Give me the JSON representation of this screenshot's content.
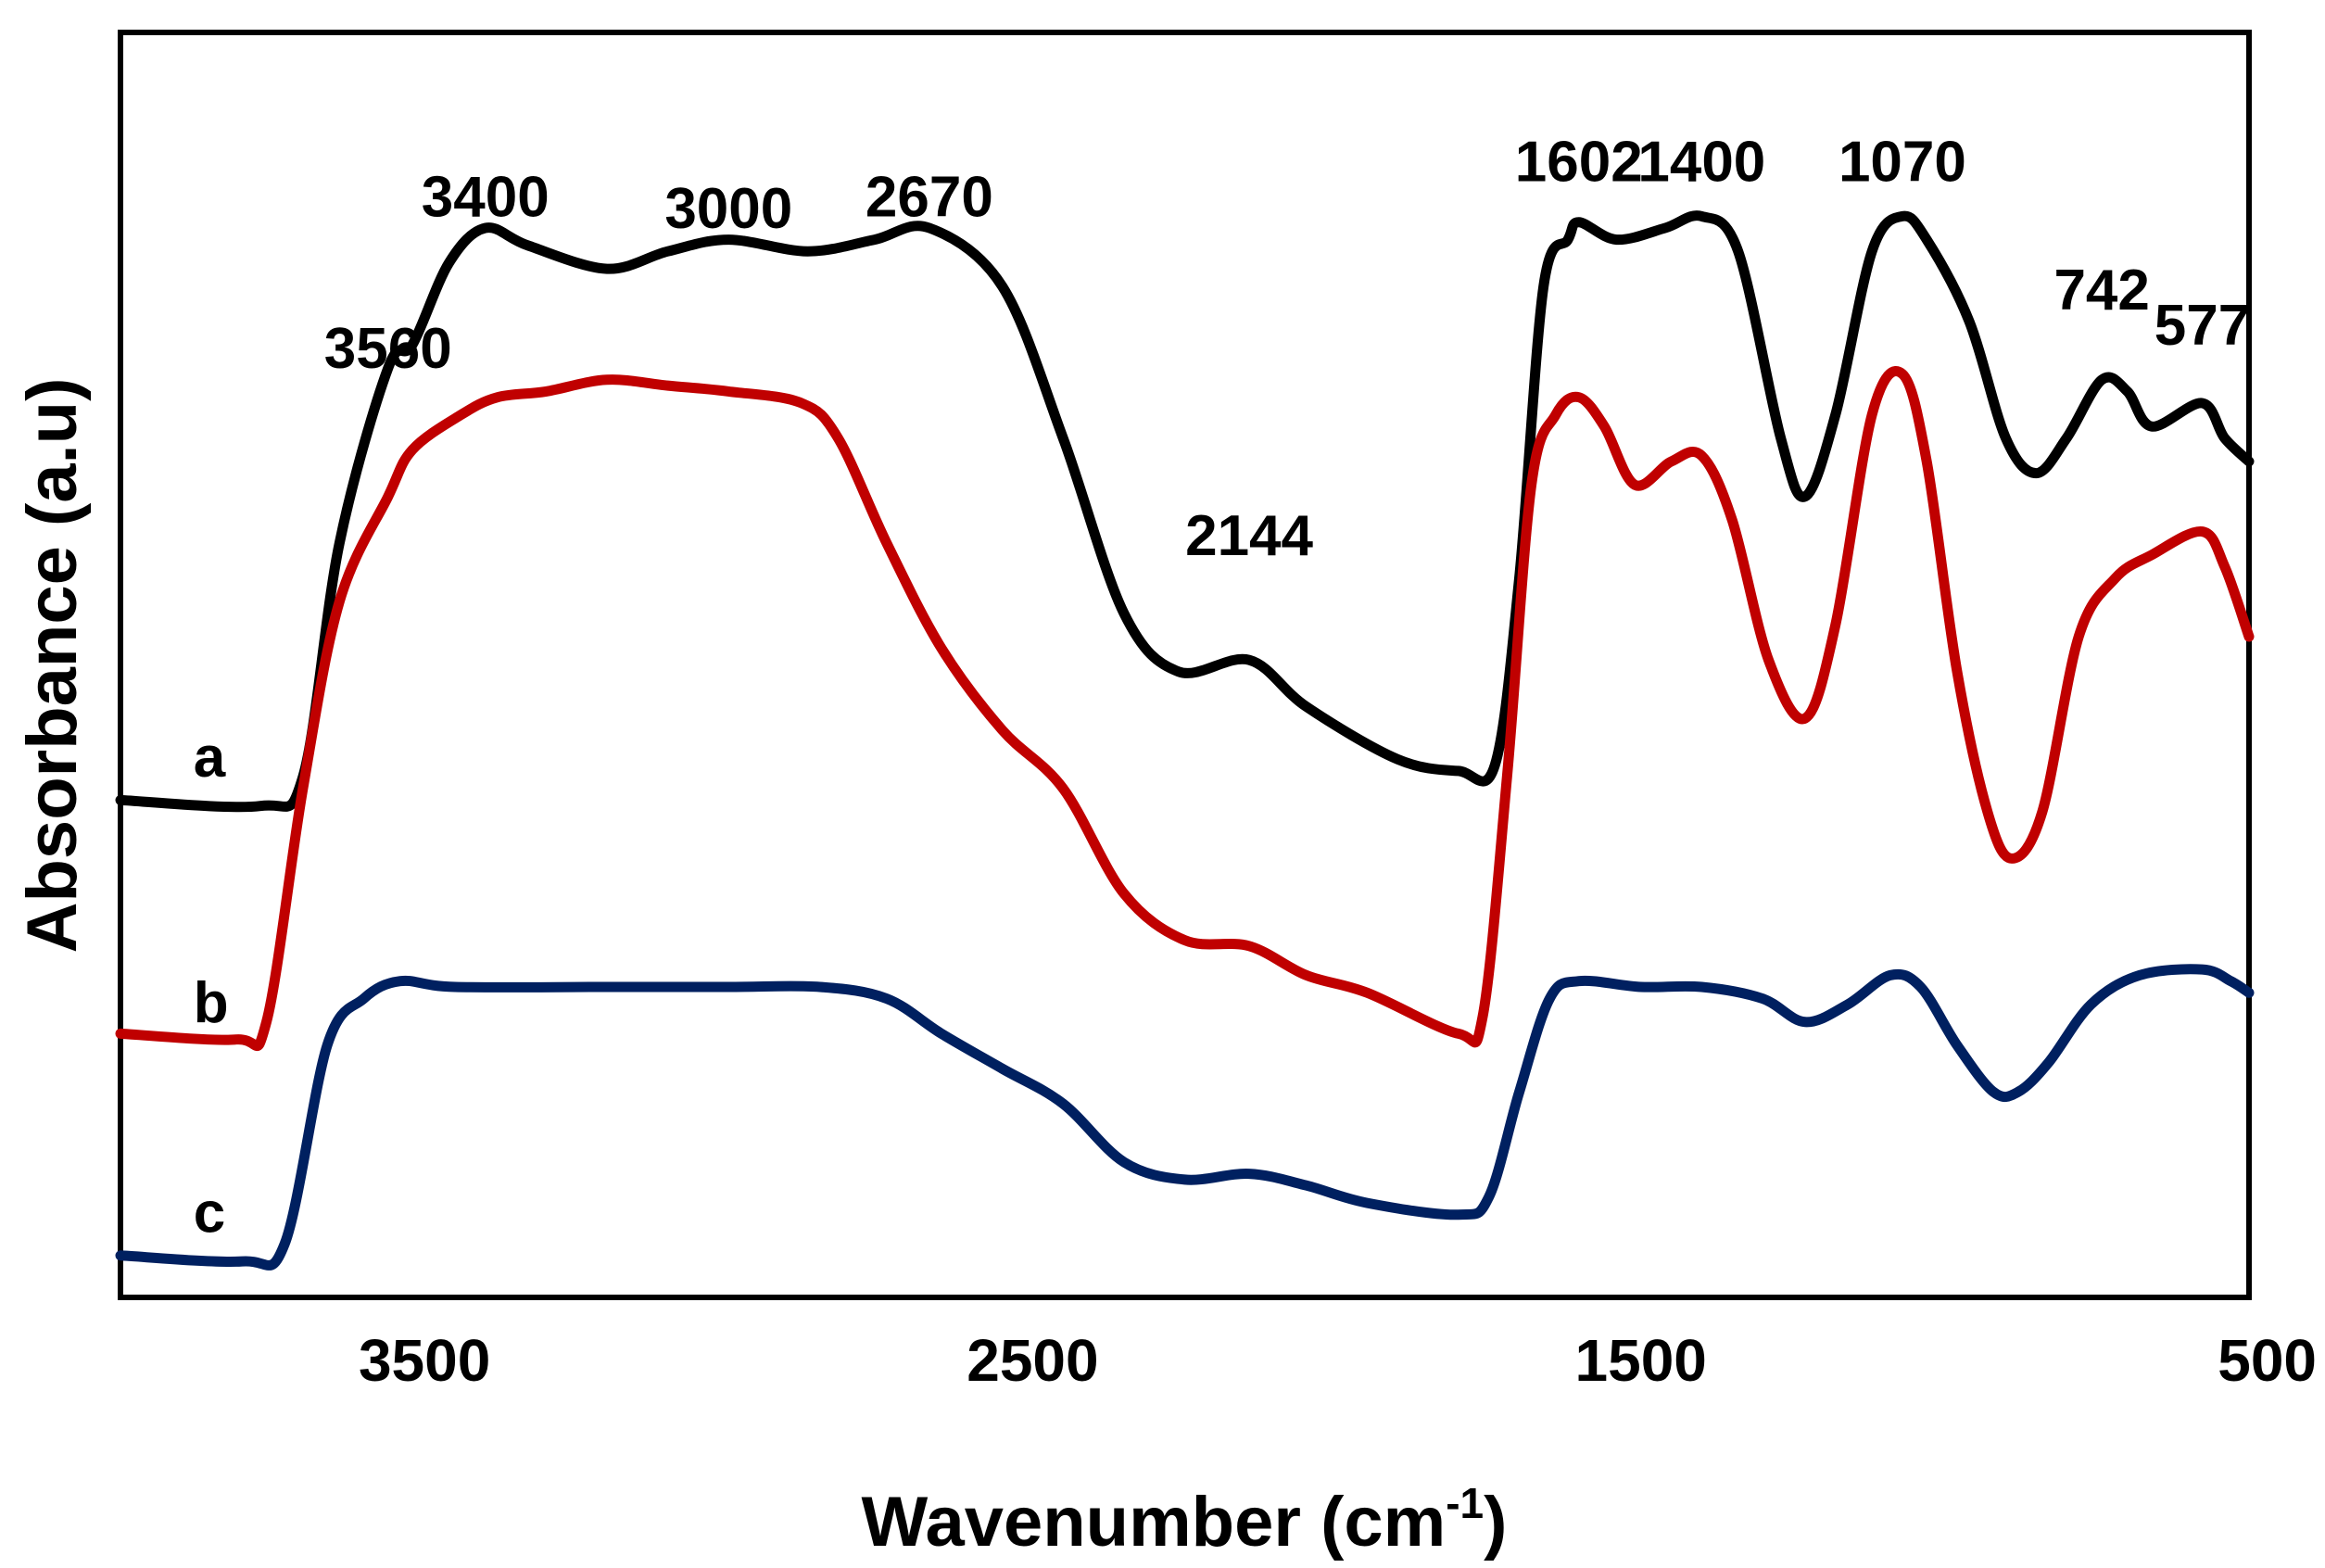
{
  "chart_data": {
    "type": "line",
    "title": "",
    "xlabel": "Wavenumber (cm",
    "xlabel_sup": "-1",
    "xlabel_close": ")",
    "ylabel": "Absorbance (a.u)",
    "xlim": [
      4000,
      500
    ],
    "x_reversed": true,
    "ylim": [
      0,
      100
    ],
    "grid": false,
    "x_ticks": [
      {
        "value": 3500,
        "label": "3500"
      },
      {
        "value": 2500,
        "label": "2500"
      },
      {
        "value": 1500,
        "label": "1500"
      },
      {
        "value": 500,
        "label": "500"
      }
    ],
    "peak_labels": [
      {
        "text": "3560",
        "x": 3560,
        "y": 78
      },
      {
        "text": "3400",
        "x": 3400,
        "y": 91
      },
      {
        "text": "3000",
        "x": 3000,
        "y": 90
      },
      {
        "text": "2670",
        "x": 2670,
        "y": 91
      },
      {
        "text": "2144",
        "x": 2144,
        "y": 62
      },
      {
        "text": "1602",
        "x": 1602,
        "y": 94
      },
      {
        "text": "1400",
        "x": 1400,
        "y": 94
      },
      {
        "text": "1070",
        "x": 1070,
        "y": 94
      },
      {
        "text": "742",
        "x": 742,
        "y": 83
      },
      {
        "text": "577",
        "x": 577,
        "y": 80
      }
    ],
    "series": [
      {
        "name": "a",
        "color": "#000000",
        "label_x": 3880,
        "label_y": 43,
        "points": [
          [
            4000,
            41
          ],
          [
            3770,
            40.5
          ],
          [
            3700,
            43
          ],
          [
            3640,
            63
          ],
          [
            3560,
            78
          ],
          [
            3520,
            80
          ],
          [
            3460,
            87
          ],
          [
            3400,
            90
          ],
          [
            3330,
            88.5
          ],
          [
            3200,
            86.5
          ],
          [
            3100,
            88
          ],
          [
            3000,
            89
          ],
          [
            2870,
            88
          ],
          [
            2760,
            89
          ],
          [
            2670,
            90
          ],
          [
            2550,
            85
          ],
          [
            2450,
            72
          ],
          [
            2350,
            57
          ],
          [
            2260,
            52
          ],
          [
            2144,
            53
          ],
          [
            2050,
            49
          ],
          [
            1900,
            44.5
          ],
          [
            1800,
            43.5
          ],
          [
            1740,
            44
          ],
          [
            1700,
            60
          ],
          [
            1660,
            85
          ],
          [
            1620,
            89
          ],
          [
            1602,
            90.5
          ],
          [
            1540,
            89
          ],
          [
            1460,
            90
          ],
          [
            1400,
            91
          ],
          [
            1340,
            88
          ],
          [
            1270,
            72
          ],
          [
            1230,
            67
          ],
          [
            1180,
            74
          ],
          [
            1120,
            88
          ],
          [
            1070,
            91
          ],
          [
            1030,
            89
          ],
          [
            960,
            82
          ],
          [
            900,
            72
          ],
          [
            850,
            69
          ],
          [
            800,
            72
          ],
          [
            742,
            77
          ],
          [
            700,
            76
          ],
          [
            660,
            73
          ],
          [
            577,
            75
          ],
          [
            540,
            72
          ],
          [
            500,
            70
          ]
        ]
      },
      {
        "name": "b",
        "color": "#c00000",
        "label_x": 3880,
        "label_y": 22,
        "points": [
          [
            4000,
            21
          ],
          [
            3810,
            20.5
          ],
          [
            3760,
            22
          ],
          [
            3700,
            42
          ],
          [
            3640,
            58
          ],
          [
            3560,
            67
          ],
          [
            3520,
            71
          ],
          [
            3440,
            74
          ],
          [
            3380,
            75.5
          ],
          [
            3300,
            76
          ],
          [
            3200,
            77
          ],
          [
            3100,
            76.5
          ],
          [
            3000,
            76
          ],
          [
            2880,
            75
          ],
          [
            2820,
            72
          ],
          [
            2740,
            63
          ],
          [
            2650,
            54
          ],
          [
            2550,
            47
          ],
          [
            2450,
            42
          ],
          [
            2350,
            33
          ],
          [
            2250,
            29
          ],
          [
            2144,
            28.5
          ],
          [
            2050,
            26
          ],
          [
            1950,
            24.5
          ],
          [
            1800,
            21
          ],
          [
            1760,
            22.5
          ],
          [
            1720,
            43
          ],
          [
            1680,
            68
          ],
          [
            1640,
            74
          ],
          [
            1602,
            75.5
          ],
          [
            1560,
            73
          ],
          [
            1510,
            68
          ],
          [
            1450,
            70
          ],
          [
            1400,
            70.5
          ],
          [
            1350,
            65
          ],
          [
            1290,
            53
          ],
          [
            1230,
            48
          ],
          [
            1180,
            56
          ],
          [
            1120,
            74
          ],
          [
            1070,
            77.5
          ],
          [
            1030,
            70
          ],
          [
            980,
            52
          ],
          [
            930,
            40
          ],
          [
            890,
            36
          ],
          [
            840,
            40
          ],
          [
            780,
            55
          ],
          [
            720,
            60
          ],
          [
            660,
            62
          ],
          [
            577,
            64
          ],
          [
            540,
            61
          ],
          [
            500,
            55
          ]
        ]
      },
      {
        "name": "c",
        "color": "#002060",
        "label_x": 3880,
        "label_y": 4,
        "points": [
          [
            4000,
            2
          ],
          [
            3800,
            1.5
          ],
          [
            3730,
            3
          ],
          [
            3660,
            20
          ],
          [
            3600,
            24
          ],
          [
            3540,
            25.5
          ],
          [
            3450,
            25
          ],
          [
            3200,
            25
          ],
          [
            3000,
            25
          ],
          [
            2850,
            25
          ],
          [
            2740,
            24
          ],
          [
            2650,
            21
          ],
          [
            2550,
            18
          ],
          [
            2450,
            15
          ],
          [
            2350,
            10
          ],
          [
            2250,
            8.5
          ],
          [
            2144,
            9
          ],
          [
            2050,
            8
          ],
          [
            1950,
            6.5
          ],
          [
            1800,
            5.5
          ],
          [
            1750,
            7
          ],
          [
            1700,
            16
          ],
          [
            1650,
            24
          ],
          [
            1602,
            25.5
          ],
          [
            1500,
            25
          ],
          [
            1400,
            25
          ],
          [
            1300,
            24
          ],
          [
            1230,
            22
          ],
          [
            1160,
            23.5
          ],
          [
            1090,
            26
          ],
          [
            1040,
            25
          ],
          [
            980,
            20
          ],
          [
            920,
            16
          ],
          [
            880,
            16
          ],
          [
            830,
            18.5
          ],
          [
            760,
            23.5
          ],
          [
            680,
            26
          ],
          [
            577,
            26.5
          ],
          [
            530,
            25.5
          ],
          [
            500,
            24.5
          ]
        ]
      }
    ]
  }
}
